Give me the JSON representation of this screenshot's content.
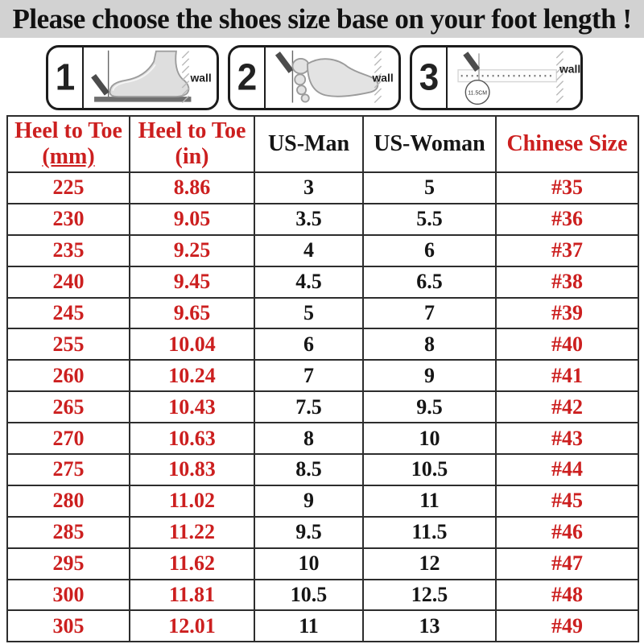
{
  "title": "Please choose the shoes size base on your foot length !",
  "colors": {
    "accent_red": "#cc1f1f",
    "text_black": "#151515",
    "title_band_bg": "#d2d2d2",
    "table_border": "#2d2d2d"
  },
  "steps": [
    {
      "number": "1",
      "wall_label": "wall"
    },
    {
      "number": "2",
      "wall_label": "wall"
    },
    {
      "number": "3",
      "wall_label": "wall",
      "measure_label": "11.5CM"
    }
  ],
  "table": {
    "headers": [
      {
        "line1": "Heel to Toe",
        "line2": "(mm)",
        "color": "red"
      },
      {
        "line1": "Heel to Toe",
        "line2": "(in)",
        "color": "red"
      },
      {
        "line1": "US-Man",
        "color": "black"
      },
      {
        "line1": "US-Woman",
        "color": "black"
      },
      {
        "line1": "Chinese Size",
        "color": "red"
      }
    ],
    "rows": [
      [
        "225",
        "8.86",
        "3",
        "5",
        "#35"
      ],
      [
        "230",
        "9.05",
        "3.5",
        "5.5",
        "#36"
      ],
      [
        "235",
        "9.25",
        "4",
        "6",
        "#37"
      ],
      [
        "240",
        "9.45",
        "4.5",
        "6.5",
        "#38"
      ],
      [
        "245",
        "9.65",
        "5",
        "7",
        "#39"
      ],
      [
        "255",
        "10.04",
        "6",
        "8",
        "#40"
      ],
      [
        "260",
        "10.24",
        "7",
        "9",
        "#41"
      ],
      [
        "265",
        "10.43",
        "7.5",
        "9.5",
        "#42"
      ],
      [
        "270",
        "10.63",
        "8",
        "10",
        "#43"
      ],
      [
        "275",
        "10.83",
        "8.5",
        "10.5",
        "#44"
      ],
      [
        "280",
        "11.02",
        "9",
        "11",
        "#45"
      ],
      [
        "285",
        "11.22",
        "9.5",
        "11.5",
        "#46"
      ],
      [
        "295",
        "11.62",
        "10",
        "12",
        "#47"
      ],
      [
        "300",
        "11.81",
        "10.5",
        "12.5",
        "#48"
      ],
      [
        "305",
        "12.01",
        "11",
        "13",
        "#49"
      ]
    ]
  }
}
